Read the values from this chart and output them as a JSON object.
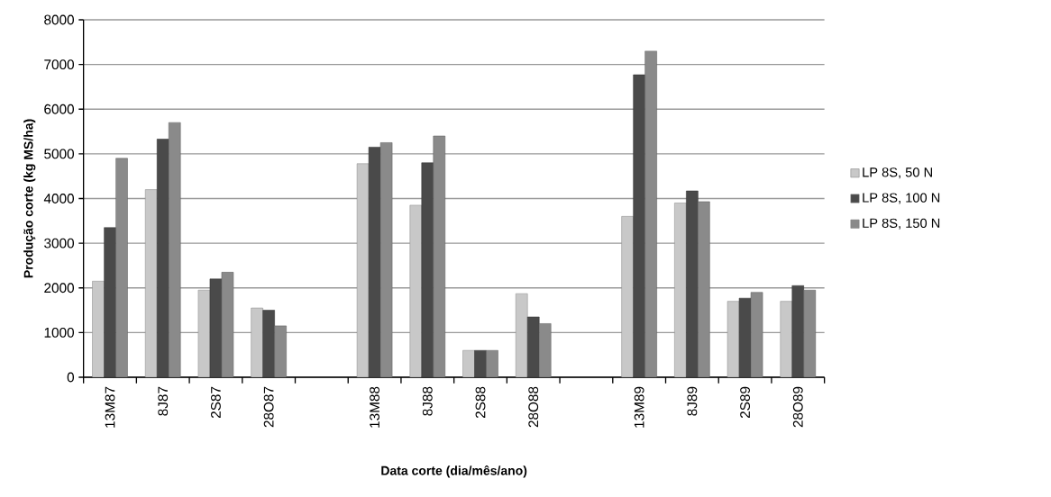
{
  "chart_data": {
    "type": "bar",
    "xlabel": "Data corte (dia/mês/ano)",
    "ylabel": "Produção corte (kg MS/ha)",
    "categories": [
      "13M87",
      "8J87",
      "2S87",
      "28O87",
      null,
      "13M88",
      "8J88",
      "2S88",
      "28O88",
      null,
      "13M89",
      "8J89",
      "2S89",
      "28O89"
    ],
    "series": [
      {
        "name": "LP 8S, 50 N",
        "color": "#c8c8c8",
        "values": [
          2150,
          4200,
          1950,
          1550,
          null,
          4780,
          3850,
          600,
          1870,
          null,
          3600,
          3900,
          1700,
          1700
        ]
      },
      {
        "name": "LP 8S, 100 N",
        "color": "#4a4a4a",
        "values": [
          3350,
          5330,
          2200,
          1500,
          null,
          5150,
          4800,
          600,
          1350,
          null,
          6770,
          4170,
          1770,
          2050
        ]
      },
      {
        "name": "LP 8S, 150 N",
        "color": "#8a8a8a",
        "values": [
          4900,
          5700,
          2350,
          1150,
          null,
          5250,
          5400,
          600,
          1200,
          null,
          7300,
          3930,
          1900,
          1950
        ]
      }
    ],
    "ylim": [
      0,
      8000
    ],
    "yticks": [
      0,
      1000,
      2000,
      3000,
      4000,
      5000,
      6000,
      7000,
      8000
    ],
    "grid": "y",
    "legend": "right"
  }
}
